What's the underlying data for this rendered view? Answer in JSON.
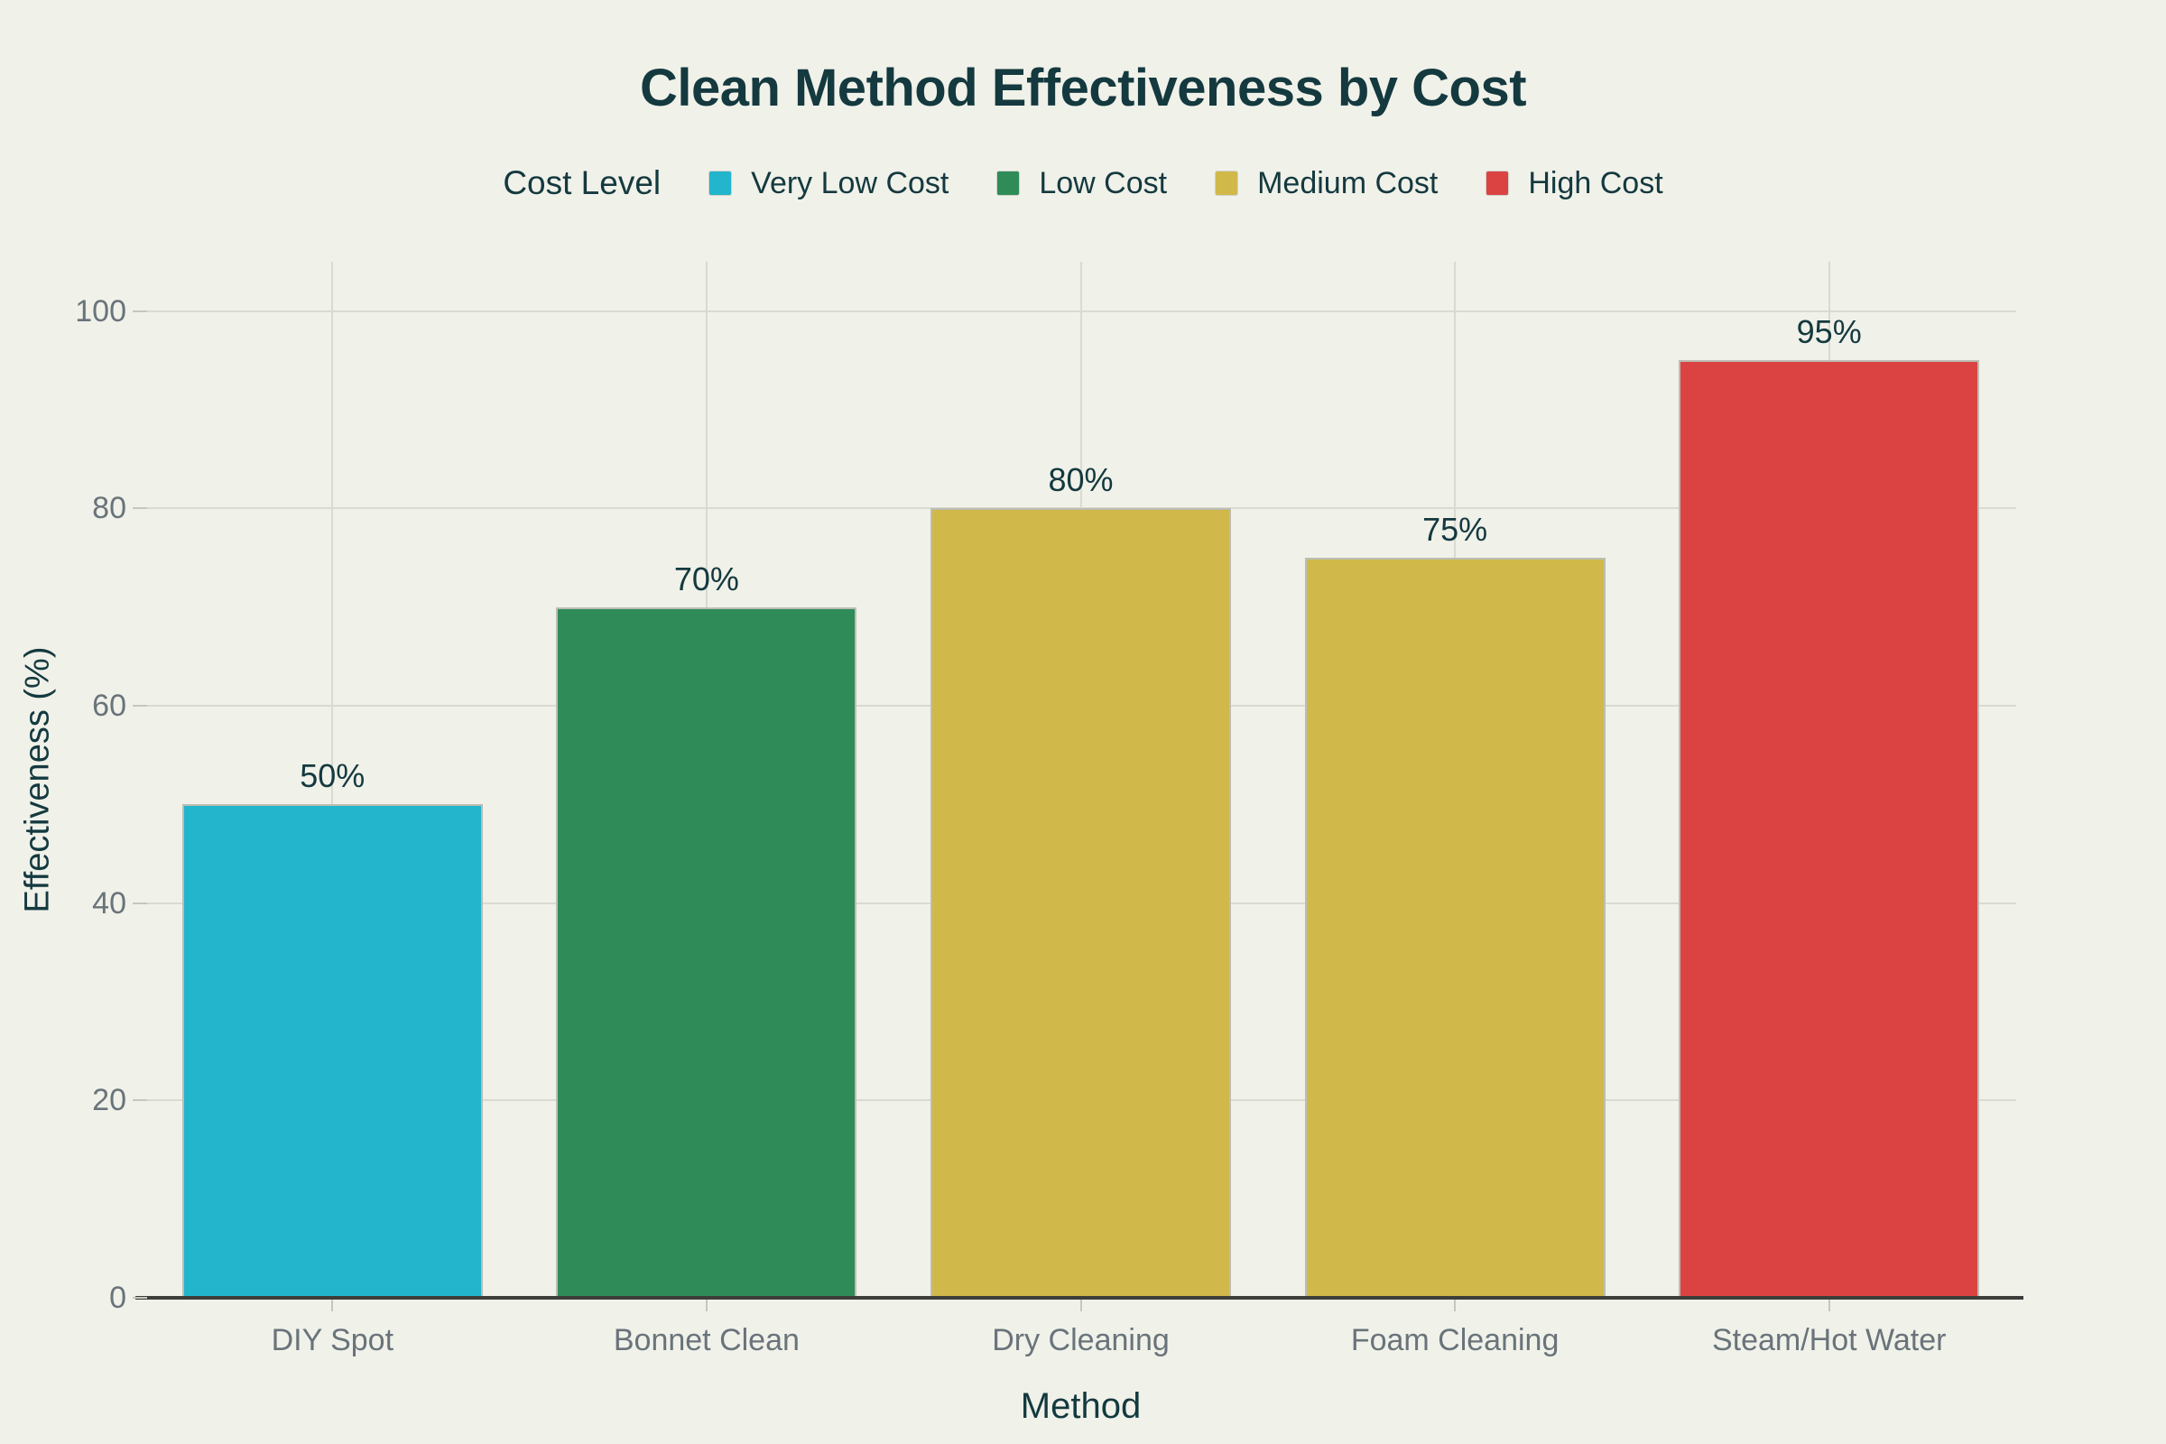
{
  "chart_data": {
    "type": "bar",
    "title": "Clean Method Effectiveness by Cost",
    "xlabel": "Method",
    "ylabel": "Effectiveness (%)",
    "categories": [
      "DIY Spot",
      "Bonnet Clean",
      "Dry Cleaning",
      "Foam Cleaning",
      "Steam/Hot Water"
    ],
    "values": [
      50,
      70,
      80,
      75,
      95
    ],
    "value_labels": [
      "50%",
      "70%",
      "80%",
      "75%",
      "95%"
    ],
    "bar_cost_levels": [
      "Very Low Cost",
      "Low Cost",
      "Medium Cost",
      "Medium Cost",
      "High Cost"
    ],
    "bar_colors": [
      "#22B5CB",
      "#2F8C58",
      "#D1B84A",
      "#D1B84A",
      "#DB4343"
    ],
    "ylim": [
      0,
      105
    ],
    "yticks": [
      0,
      20,
      40,
      60,
      80,
      100
    ],
    "grid": true,
    "legend": {
      "title": "Cost Level",
      "position": "top",
      "items": [
        {
          "label": "Very Low Cost",
          "color": "#22B5CB"
        },
        {
          "label": "Low Cost",
          "color": "#2F8C58"
        },
        {
          "label": "Medium Cost",
          "color": "#D1B84A"
        },
        {
          "label": "High Cost",
          "color": "#DB4343"
        }
      ]
    },
    "colors": {
      "background": "#F0F1E9",
      "title_text": "#14393F",
      "tick_text": "#69737A",
      "gridline": "#D9DAD0",
      "axis_line": "#3D3D3B",
      "bar_border": "#BCBDB4"
    }
  }
}
